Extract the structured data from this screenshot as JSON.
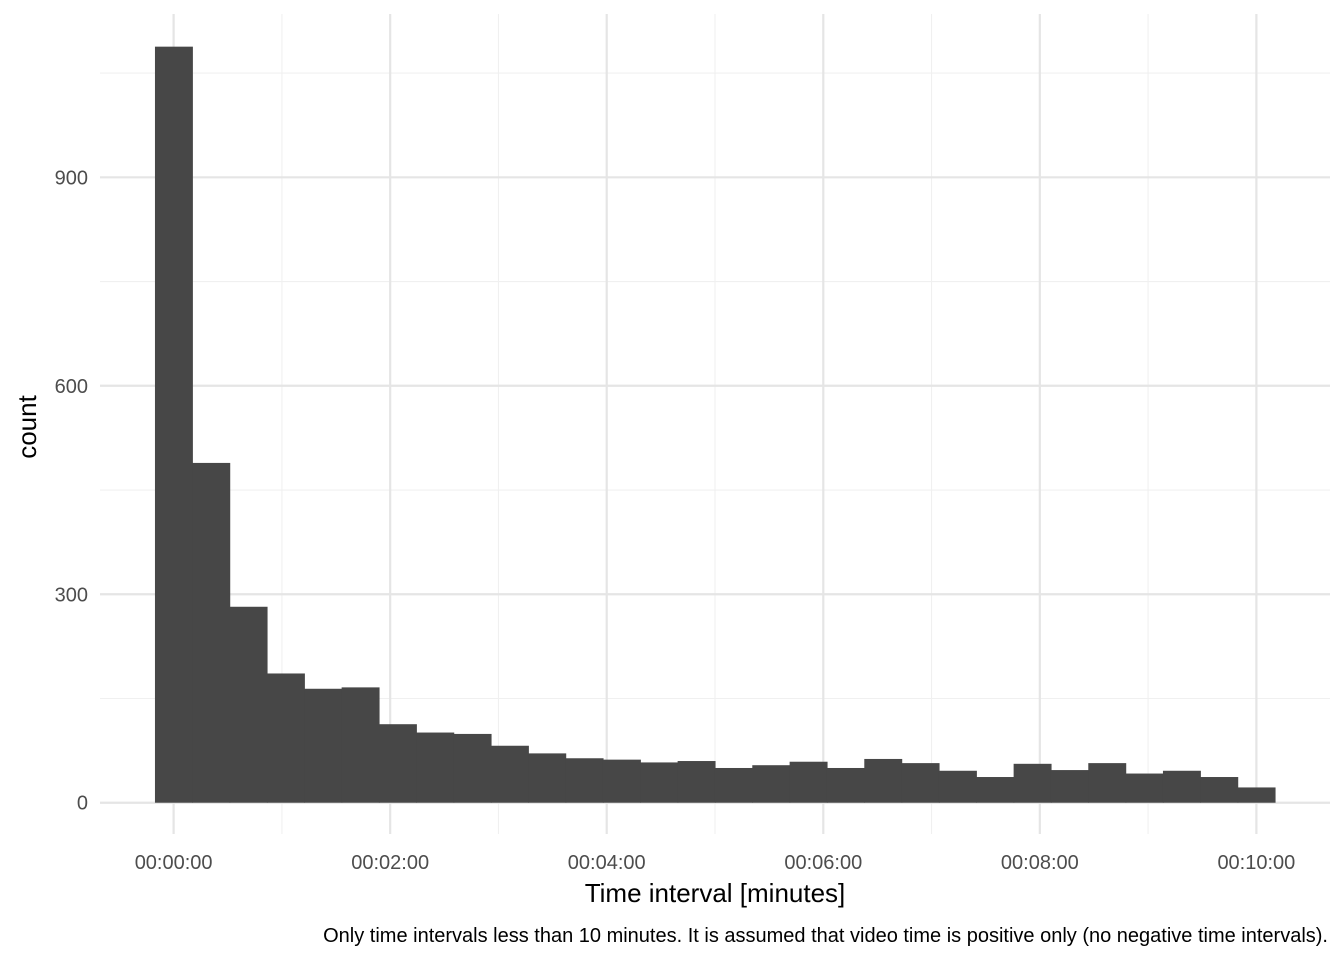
{
  "chart_data": {
    "type": "bar",
    "title": "",
    "xlabel": "Time interval [minutes]",
    "ylabel": "count",
    "caption": "Only time intervals less than 10 minutes. It is assumed that video time is positive only (no negative time intervals).",
    "x_unit": "minutes",
    "bin_width_minutes": 0.3448,
    "bin_start_minutes": -0.1724,
    "bar_color": "#474747",
    "grid": true,
    "legend": "none",
    "xlim_minutes": [
      -0.68,
      10.68
    ],
    "ylim": [
      -45,
      1135
    ],
    "x_ticks": [
      {
        "value": 0,
        "label": "00:00:00"
      },
      {
        "value": 2,
        "label": "00:02:00"
      },
      {
        "value": 4,
        "label": "00:04:00"
      },
      {
        "value": 6,
        "label": "00:06:00"
      },
      {
        "value": 8,
        "label": "00:08:00"
      },
      {
        "value": 10,
        "label": "00:10:00"
      }
    ],
    "y_ticks": [
      {
        "value": 0,
        "label": "0"
      },
      {
        "value": 300,
        "label": "300"
      },
      {
        "value": 600,
        "label": "600"
      },
      {
        "value": 900,
        "label": "900"
      }
    ],
    "values": [
      1088,
      489,
      282,
      186,
      164,
      166,
      113,
      101,
      99,
      82,
      71,
      64,
      62,
      58,
      60,
      50,
      54,
      59,
      50,
      63,
      57,
      46,
      37,
      56,
      47,
      57,
      42,
      46,
      37,
      22
    ]
  }
}
